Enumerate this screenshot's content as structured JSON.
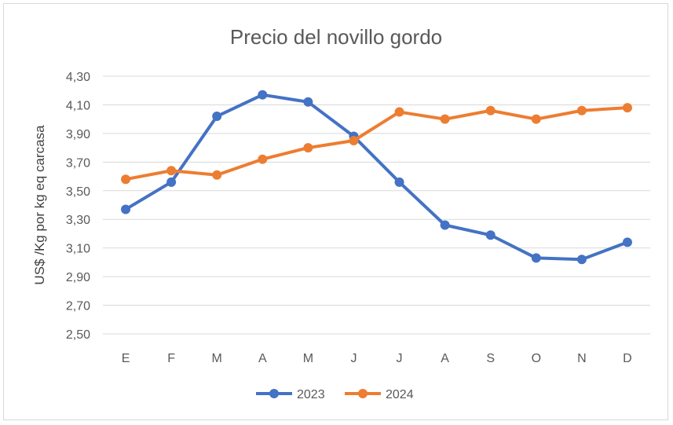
{
  "chart_data": {
    "type": "line",
    "title": "Precio del novillo gordo",
    "xlabel": "",
    "ylabel": "US$ /Kg por kg eq carcasa",
    "categories": [
      "E",
      "F",
      "M",
      "A",
      "M",
      "J",
      "J",
      "A",
      "S",
      "O",
      "N",
      "D"
    ],
    "ylim": [
      2.5,
      4.3
    ],
    "yticks": [
      "2,50",
      "2,70",
      "2,90",
      "3,10",
      "3,30",
      "3,50",
      "3,70",
      "3,90",
      "4,10",
      "4,30"
    ],
    "grid": true,
    "legend_position": "bottom",
    "series": [
      {
        "name": "2023",
        "color": "#4472C4",
        "values": [
          3.37,
          3.56,
          4.02,
          4.17,
          4.12,
          3.88,
          3.56,
          3.26,
          3.19,
          3.03,
          3.02,
          3.14
        ]
      },
      {
        "name": "2024",
        "color": "#ED7D31",
        "values": [
          3.58,
          3.64,
          3.61,
          3.72,
          3.8,
          3.85,
          4.05,
          4.0,
          4.06,
          4.0,
          4.06,
          4.08
        ]
      }
    ]
  }
}
